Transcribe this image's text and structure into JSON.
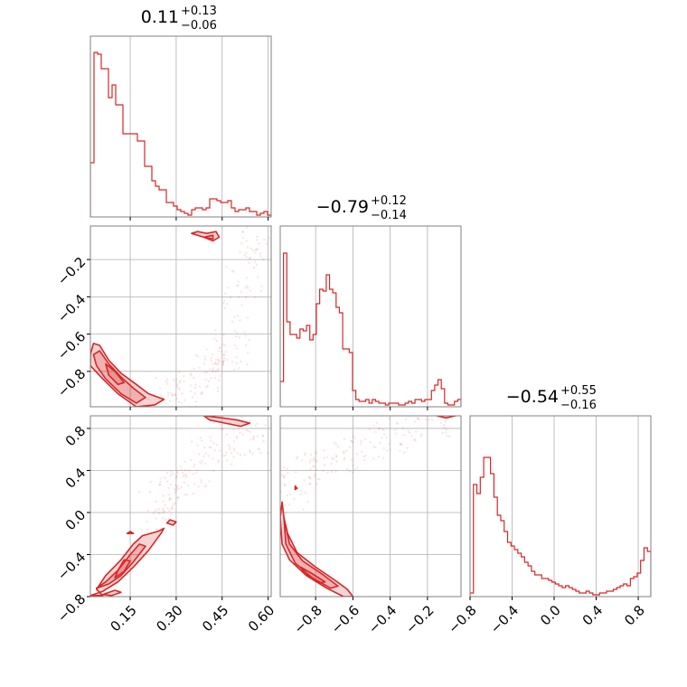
{
  "chart_data": {
    "type": "corner",
    "color": "#d62728",
    "parameters": [
      {
        "range": [
          0.02,
          0.61
        ],
        "ticks": [
          "0.15",
          "0.30",
          "0.45",
          "0.60"
        ],
        "tick_values": [
          0.15,
          0.3,
          0.45,
          0.6
        ]
      },
      {
        "range": [
          -0.99,
          -0.02
        ],
        "ticks": [
          "−0.8",
          "−0.6",
          "−0.4",
          "−0.2"
        ],
        "tick_values": [
          -0.8,
          -0.6,
          -0.4,
          -0.2
        ]
      },
      {
        "range": [
          -0.8,
          0.92
        ],
        "ticks": [
          "−0.8",
          "−0.4",
          "0.0",
          "0.4",
          "0.8"
        ],
        "tick_values": [
          -0.8,
          -0.4,
          0.0,
          0.4,
          0.8
        ]
      }
    ],
    "titles": [
      {
        "median": "0.11",
        "plus": "+0.13",
        "minus": "−0.06"
      },
      {
        "median": "−0.79",
        "plus": "+0.12",
        "minus": "−0.14"
      },
      {
        "median": "−0.54",
        "plus": "+0.55",
        "minus": "−0.16"
      }
    ],
    "histograms": [
      {
        "bins": [
          0.02,
          0.61
        ],
        "counts": [
          0.3,
          0.91,
          0.9,
          0.82,
          0.82,
          0.66,
          0.73,
          0.62,
          0.62,
          0.46,
          0.46,
          0.46,
          0.46,
          0.42,
          0.42,
          0.28,
          0.28,
          0.2,
          0.17,
          0.15,
          0.15,
          0.08,
          0.08,
          0.06,
          0.04,
          0.03,
          0.02,
          0.01,
          0.04,
          0.05,
          0.05,
          0.04,
          0.05,
          0.1,
          0.1,
          0.09,
          0.08,
          0.08,
          0.09,
          0.05,
          0.03,
          0.04,
          0.04,
          0.05,
          0.03,
          0.03,
          0.01,
          0.02,
          0.03,
          0.01
        ]
      },
      {
        "bins": [
          -0.99,
          -0.02
        ],
        "counts": [
          0.14,
          0.85,
          0.47,
          0.4,
          0.4,
          0.38,
          0.43,
          0.42,
          0.45,
          0.37,
          0.4,
          0.57,
          0.65,
          0.64,
          0.73,
          0.65,
          0.63,
          0.55,
          0.52,
          0.32,
          0.32,
          0.3,
          0.09,
          0.04,
          0.03,
          0.03,
          0.04,
          0.02,
          0.04,
          0.03,
          0.02,
          0.02,
          0.01,
          0.02,
          0.02,
          0.02,
          0.01,
          0.01,
          0.02,
          0.03,
          0.02,
          0.04,
          0.04,
          0.03,
          0.04,
          0.04,
          0.09,
          0.12,
          0.15,
          0.1,
          0.02,
          0.01,
          0.01,
          0.03,
          0.04
        ]
      },
      {
        "bins": [
          -0.8,
          0.92
        ],
        "counts": [
          0.02,
          0.62,
          0.57,
          0.66,
          0.77,
          0.77,
          0.68,
          0.55,
          0.45,
          0.42,
          0.36,
          0.3,
          0.28,
          0.26,
          0.24,
          0.22,
          0.19,
          0.17,
          0.14,
          0.12,
          0.12,
          0.1,
          0.1,
          0.09,
          0.08,
          0.07,
          0.06,
          0.05,
          0.06,
          0.05,
          0.04,
          0.03,
          0.02,
          0.02,
          0.03,
          0.02,
          0.01,
          0.01,
          0.02,
          0.02,
          0.03,
          0.03,
          0.04,
          0.05,
          0.06,
          0.07,
          0.06,
          0.1,
          0.11,
          0.13,
          0.2,
          0.27,
          0.25
        ]
      }
    ],
    "contours": {
      "1_0": [
        [
          [
            0.02,
            -0.71
          ],
          [
            0.03,
            -0.65
          ],
          [
            0.05,
            -0.66
          ],
          [
            0.08,
            -0.74
          ],
          [
            0.12,
            -0.81
          ],
          [
            0.17,
            -0.87
          ],
          [
            0.21,
            -0.92
          ],
          [
            0.26,
            -0.95
          ],
          [
            0.23,
            -0.98
          ],
          [
            0.17,
            -0.99
          ],
          [
            0.11,
            -0.92
          ],
          [
            0.06,
            -0.84
          ],
          [
            0.02,
            -0.77
          ]
        ],
        [
          [
            0.03,
            -0.71
          ],
          [
            0.05,
            -0.69
          ],
          [
            0.08,
            -0.76
          ],
          [
            0.12,
            -0.83
          ],
          [
            0.16,
            -0.89
          ],
          [
            0.2,
            -0.94
          ],
          [
            0.17,
            -0.97
          ],
          [
            0.12,
            -0.92
          ],
          [
            0.07,
            -0.84
          ],
          [
            0.04,
            -0.77
          ]
        ],
        [
          [
            0.07,
            -0.76
          ],
          [
            0.1,
            -0.8
          ],
          [
            0.13,
            -0.86
          ],
          [
            0.11,
            -0.87
          ],
          [
            0.08,
            -0.82
          ]
        ],
        [
          [
            0.35,
            -0.06
          ],
          [
            0.37,
            -0.05
          ],
          [
            0.4,
            -0.06
          ],
          [
            0.43,
            -0.05
          ],
          [
            0.44,
            -0.08
          ],
          [
            0.42,
            -0.1
          ],
          [
            0.39,
            -0.08
          ]
        ],
        [
          [
            0.39,
            -0.08
          ],
          [
            0.42,
            -0.07
          ],
          [
            0.42,
            -0.09
          ]
        ]
      ],
      "2_0": [
        [
          [
            0.02,
            -0.79
          ],
          [
            0.06,
            -0.75
          ],
          [
            0.11,
            -0.66
          ],
          [
            0.16,
            -0.52
          ],
          [
            0.21,
            -0.36
          ],
          [
            0.25,
            -0.2
          ],
          [
            0.26,
            -0.15
          ],
          [
            0.24,
            -0.18
          ],
          [
            0.19,
            -0.22
          ],
          [
            0.16,
            -0.3
          ],
          [
            0.12,
            -0.45
          ],
          [
            0.07,
            -0.6
          ],
          [
            0.04,
            -0.73
          ],
          [
            0.06,
            -0.79
          ]
        ],
        [
          [
            0.04,
            -0.72
          ],
          [
            0.08,
            -0.68
          ],
          [
            0.12,
            -0.6
          ],
          [
            0.16,
            -0.47
          ],
          [
            0.2,
            -0.32
          ],
          [
            0.18,
            -0.3
          ],
          [
            0.15,
            -0.4
          ],
          [
            0.11,
            -0.55
          ],
          [
            0.07,
            -0.66
          ]
        ],
        [
          [
            0.1,
            -0.62
          ],
          [
            0.13,
            -0.56
          ],
          [
            0.15,
            -0.46
          ],
          [
            0.13,
            -0.45
          ],
          [
            0.11,
            -0.55
          ]
        ],
        [
          [
            0.06,
            -0.78
          ],
          [
            0.1,
            -0.74
          ],
          [
            0.12,
            -0.76
          ],
          [
            0.09,
            -0.79
          ]
        ],
        [
          [
            0.39,
            0.92
          ],
          [
            0.45,
            0.9
          ],
          [
            0.5,
            0.88
          ],
          [
            0.54,
            0.85
          ],
          [
            0.51,
            0.82
          ],
          [
            0.46,
            0.85
          ],
          [
            0.41,
            0.88
          ]
        ],
        [
          [
            0.27,
            -0.1
          ],
          [
            0.28,
            -0.07
          ],
          [
            0.3,
            -0.09
          ],
          [
            0.29,
            -0.12
          ]
        ],
        [
          [
            0.14,
            -0.2
          ],
          [
            0.15,
            -0.18
          ],
          [
            0.16,
            -0.2
          ]
        ]
      ],
      "2_1": [
        [
          [
            -0.98,
            0.1
          ],
          [
            -0.97,
            -0.05
          ],
          [
            -0.95,
            -0.2
          ],
          [
            -0.9,
            -0.38
          ],
          [
            -0.8,
            -0.52
          ],
          [
            -0.7,
            -0.64
          ],
          [
            -0.63,
            -0.73
          ],
          [
            -0.6,
            -0.8
          ],
          [
            -0.65,
            -0.8
          ],
          [
            -0.74,
            -0.72
          ],
          [
            -0.85,
            -0.6
          ],
          [
            -0.94,
            -0.45
          ],
          [
            -0.98,
            -0.3
          ],
          [
            -0.99,
            -0.05
          ]
        ],
        [
          [
            -0.97,
            -0.05
          ],
          [
            -0.94,
            -0.3
          ],
          [
            -0.87,
            -0.46
          ],
          [
            -0.77,
            -0.58
          ],
          [
            -0.68,
            -0.7
          ],
          [
            -0.72,
            -0.72
          ],
          [
            -0.82,
            -0.62
          ],
          [
            -0.91,
            -0.48
          ],
          [
            -0.96,
            -0.3
          ]
        ],
        [
          [
            -0.88,
            -0.52
          ],
          [
            -0.82,
            -0.58
          ],
          [
            -0.75,
            -0.66
          ],
          [
            -0.78,
            -0.67
          ],
          [
            -0.86,
            -0.58
          ]
        ],
        [
          [
            -0.15,
            0.92
          ],
          [
            -0.1,
            0.9
          ],
          [
            -0.05,
            0.92
          ],
          [
            -0.1,
            0.94
          ]
        ],
        [
          [
            -0.91,
            0.25
          ],
          [
            -0.9,
            0.23
          ],
          [
            -0.91,
            0.22
          ]
        ]
      ]
    },
    "scatter_trend": {
      "1_0": [
        [
          0.25,
          -0.95
        ],
        [
          0.3,
          -0.91
        ],
        [
          0.35,
          -0.85
        ],
        [
          0.4,
          -0.82
        ],
        [
          0.45,
          -0.78
        ],
        [
          0.48,
          -0.7
        ],
        [
          0.5,
          -0.5
        ],
        [
          0.52,
          -0.3
        ],
        [
          0.55,
          -0.15
        ],
        [
          0.57,
          -0.05
        ]
      ],
      "2_0": [
        [
          0.2,
          -0.1
        ],
        [
          0.24,
          0.05
        ],
        [
          0.28,
          0.2
        ],
        [
          0.32,
          0.32
        ],
        [
          0.36,
          0.42
        ],
        [
          0.42,
          0.55
        ],
        [
          0.48,
          0.7
        ],
        [
          0.53,
          0.78
        ],
        [
          0.58,
          0.6
        ]
      ],
      "2_1": [
        [
          -0.97,
          0.15
        ],
        [
          -0.92,
          0.28
        ],
        [
          -0.85,
          0.38
        ],
        [
          -0.75,
          0.48
        ],
        [
          -0.62,
          0.56
        ],
        [
          -0.5,
          0.65
        ],
        [
          -0.35,
          0.75
        ],
        [
          -0.2,
          0.85
        ],
        [
          -0.1,
          0.9
        ]
      ]
    }
  }
}
